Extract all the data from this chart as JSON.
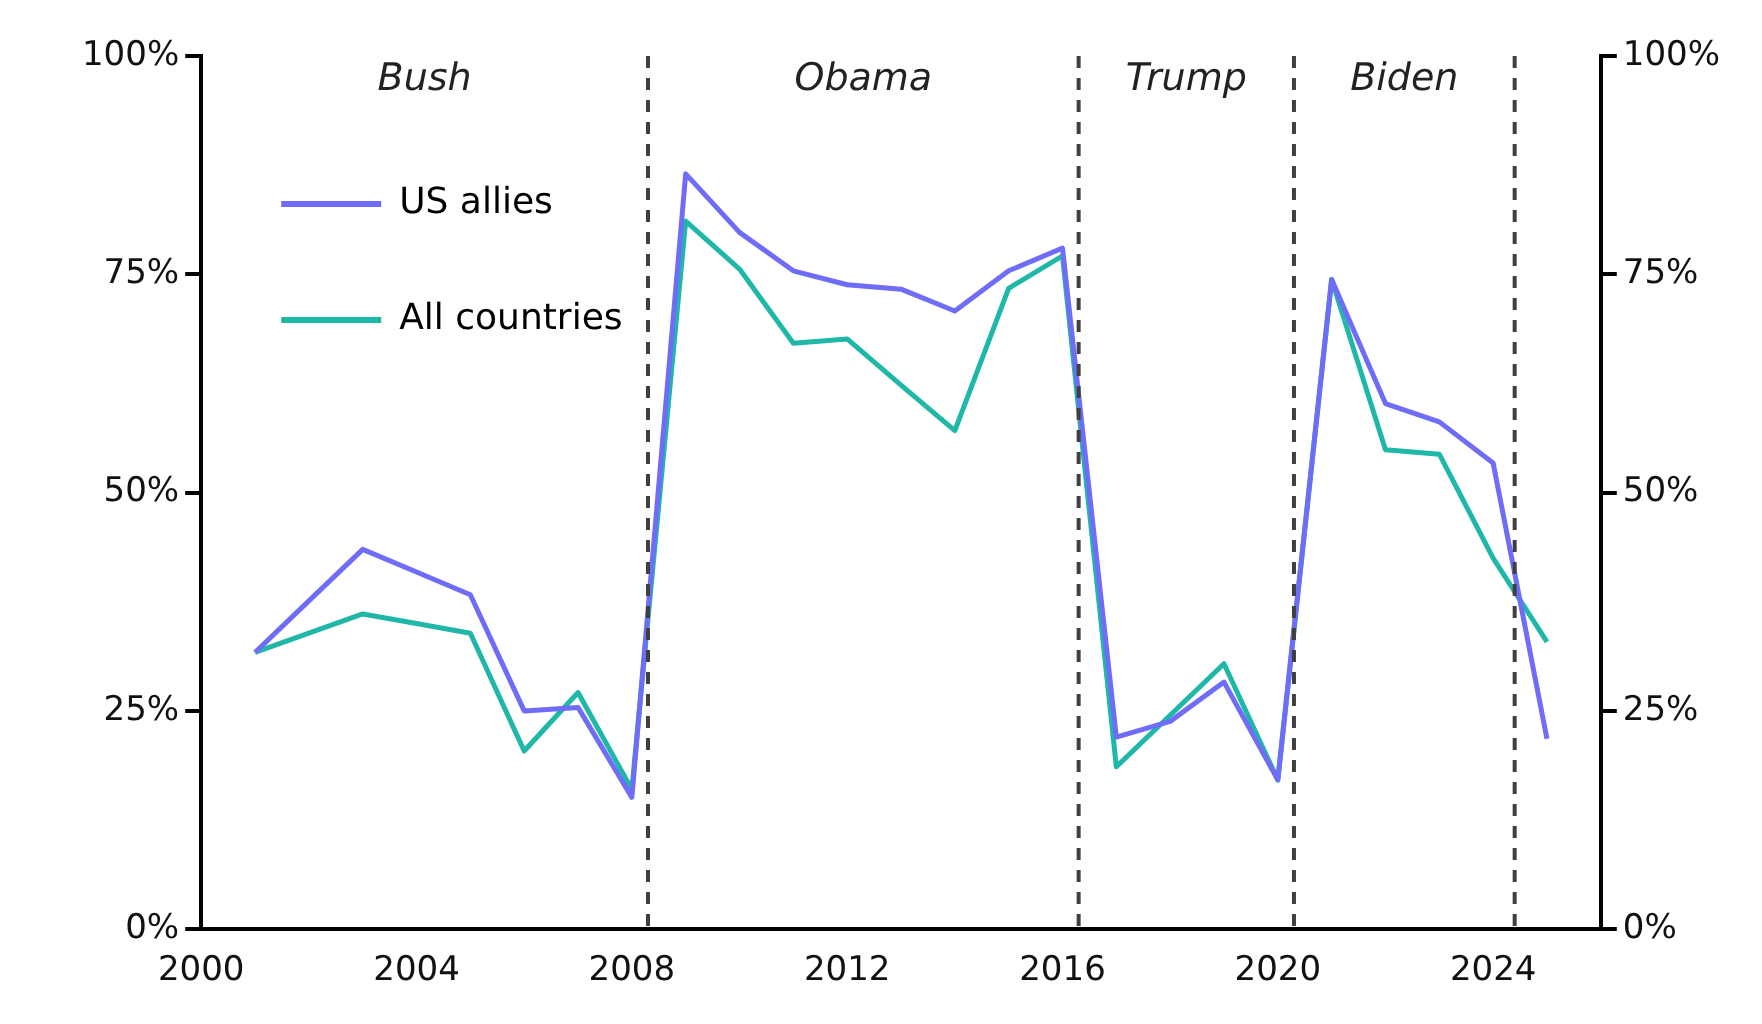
{
  "chart_data": {
    "type": "line",
    "x": [
      2001,
      2002,
      2003,
      2004,
      2005,
      2006,
      2007,
      2008,
      2009,
      2010,
      2011,
      2012,
      2013,
      2014,
      2015,
      2016,
      2017,
      2018,
      2019,
      2020,
      2021,
      2022,
      2023,
      2024,
      2025
    ],
    "series": [
      {
        "name": "US allies",
        "color": "#6f6cf7",
        "values": [
          31.7,
          37.6,
          43.5,
          40.9,
          38.3,
          25,
          25.4,
          15.1,
          86.5,
          79.8,
          75.4,
          73.8,
          73.3,
          70.8,
          75.4,
          78,
          22,
          23.8,
          28.3,
          17.1,
          74.4,
          60.2,
          58.1,
          53.4,
          21.8
        ]
      },
      {
        "name": "All countries",
        "color": "#1fb8a8",
        "values": [
          31.7,
          33.9,
          36.1,
          35,
          33.9,
          20.4,
          27.1,
          16,
          81.1,
          75.6,
          67.1,
          67.6,
          62.3,
          57.1,
          73.4,
          77.1,
          18.6,
          24.5,
          30.4,
          17.1,
          74.4,
          54.9,
          54.4,
          42.5,
          32.9
        ]
      }
    ],
    "xlim": [
      2000,
      2026
    ],
    "xticks": [
      2000,
      2004,
      2008,
      2012,
      2016,
      2020,
      2024
    ],
    "ylim": [
      0,
      100
    ],
    "yticks": [
      {
        "value": 0,
        "label": "0%"
      },
      {
        "value": 25,
        "label": "25%"
      },
      {
        "value": 50,
        "label": "50%"
      },
      {
        "value": 75,
        "label": "75%"
      },
      {
        "value": 100,
        "label": "100%"
      }
    ],
    "y2lim": [
      0,
      100
    ],
    "y2ticks": [
      {
        "value": 0,
        "label": "0%"
      },
      {
        "value": 25,
        "label": "25%"
      },
      {
        "value": 50,
        "label": "50%"
      },
      {
        "value": 75,
        "label": "75%"
      },
      {
        "value": 100,
        "label": "100%"
      }
    ],
    "ref_lines": [
      {
        "axis": "x",
        "value": 2008.3,
        "color": "#404040",
        "line_style": "dashed"
      },
      {
        "axis": "x",
        "value": 2016.3,
        "color": "#404040",
        "line_style": "dashed"
      },
      {
        "axis": "x",
        "value": 2020.3,
        "color": "#404040",
        "line_style": "dashed"
      },
      {
        "axis": "x",
        "value": 2024.4,
        "color": "#404040",
        "line_style": "dashed"
      }
    ],
    "annotations": [
      "Bush",
      "Obama",
      "Trump",
      "Biden"
    ],
    "grid": false,
    "legend": "top left",
    "marker": "none",
    "line_style": "solid"
  }
}
